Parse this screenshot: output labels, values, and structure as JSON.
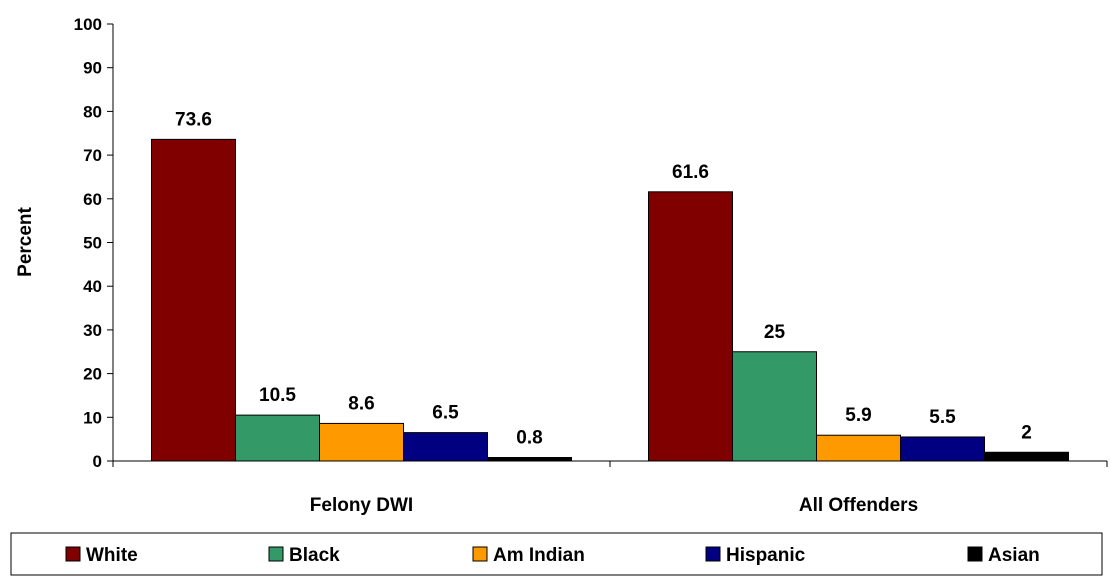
{
  "chart_data": {
    "type": "bar",
    "ylabel": "Percent",
    "ylim": [
      0,
      100
    ],
    "yticks": [
      0,
      10,
      20,
      30,
      40,
      50,
      60,
      70,
      80,
      90,
      100
    ],
    "categories": [
      "Felony DWI",
      "All Offenders"
    ],
    "series": [
      {
        "name": "White",
        "color": "#800000",
        "values": [
          73.6,
          61.6
        ],
        "labels": [
          "73.6",
          "61.6"
        ]
      },
      {
        "name": "Black",
        "color": "#339966",
        "values": [
          10.5,
          25
        ],
        "labels": [
          "10.5",
          "25"
        ]
      },
      {
        "name": "Am Indian",
        "color": "#FF9900",
        "values": [
          8.6,
          5.9
        ],
        "labels": [
          "8.6",
          "5.9"
        ]
      },
      {
        "name": "Hispanic",
        "color": "#000080",
        "values": [
          6.5,
          5.5
        ],
        "labels": [
          "6.5",
          "5.5"
        ]
      },
      {
        "name": "Asian",
        "color": "#000000",
        "values": [
          0.8,
          2
        ],
        "labels": [
          "0.8",
          "2"
        ]
      }
    ],
    "grid": false,
    "legend": "bottom"
  }
}
